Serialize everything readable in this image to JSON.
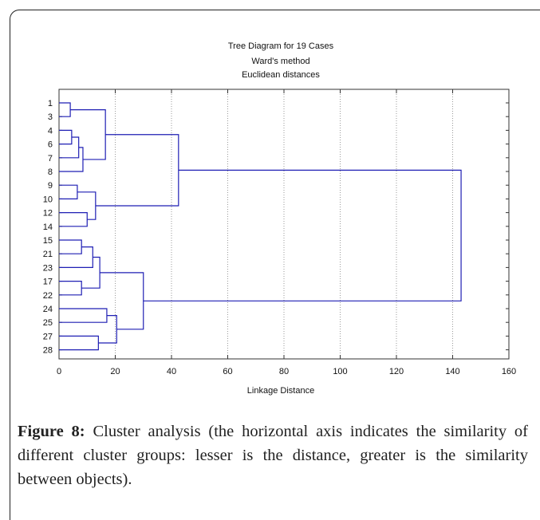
{
  "chart_data": {
    "type": "dendrogram",
    "title": "Tree Diagram for 19 Cases",
    "subtitle_method": "Ward's method",
    "subtitle_distance": "Euclidean distances",
    "xlabel": "Linkage Distance",
    "xlim": [
      0,
      160
    ],
    "xticks": [
      0,
      20,
      40,
      60,
      80,
      100,
      120,
      140,
      160
    ],
    "grid": "vertical dotted",
    "leaf_color": "#1f1fb4",
    "leaves": [
      "1",
      "3",
      "4",
      "6",
      "7",
      "8",
      "9",
      "10",
      "12",
      "14",
      "15",
      "21",
      "23",
      "17",
      "22",
      "24",
      "25",
      "27",
      "28"
    ],
    "merges": [
      {
        "id": "m1",
        "left": "1",
        "right": "3",
        "height": 4
      },
      {
        "id": "m2",
        "left": "4",
        "right": "6",
        "height": 4.5
      },
      {
        "id": "m3",
        "left": "m2",
        "right": "7",
        "height": 7
      },
      {
        "id": "m4",
        "left": "m3",
        "right": "8",
        "height": 8.5
      },
      {
        "id": "m5",
        "left": "m1",
        "right": "m4",
        "height": 16.5
      },
      {
        "id": "m6",
        "left": "9",
        "right": "10",
        "height": 6.5
      },
      {
        "id": "m7",
        "left": "12",
        "right": "14",
        "height": 10
      },
      {
        "id": "m8",
        "left": "m6",
        "right": "m7",
        "height": 13
      },
      {
        "id": "m9",
        "left": "m5",
        "right": "m8",
        "height": 42.5
      },
      {
        "id": "m10",
        "left": "15",
        "right": "21",
        "height": 8
      },
      {
        "id": "m11",
        "left": "m10",
        "right": "23",
        "height": 12
      },
      {
        "id": "m12",
        "left": "17",
        "right": "22",
        "height": 8
      },
      {
        "id": "m13",
        "left": "m11",
        "right": "m12",
        "height": 14.5
      },
      {
        "id": "m14",
        "left": "24",
        "right": "25",
        "height": 17
      },
      {
        "id": "m15",
        "left": "27",
        "right": "28",
        "height": 14
      },
      {
        "id": "m16",
        "left": "m14",
        "right": "m15",
        "height": 20.5
      },
      {
        "id": "m17",
        "left": "m13",
        "right": "m16",
        "height": 30
      },
      {
        "id": "m18",
        "left": "m9",
        "right": "m17",
        "height": 143
      }
    ]
  },
  "caption": {
    "label": "Figure 8:",
    "text": " Cluster analysis (the horizontal axis indicates the similarity of different cluster groups: lesser is the distance, greater is the similarity between objects)."
  }
}
